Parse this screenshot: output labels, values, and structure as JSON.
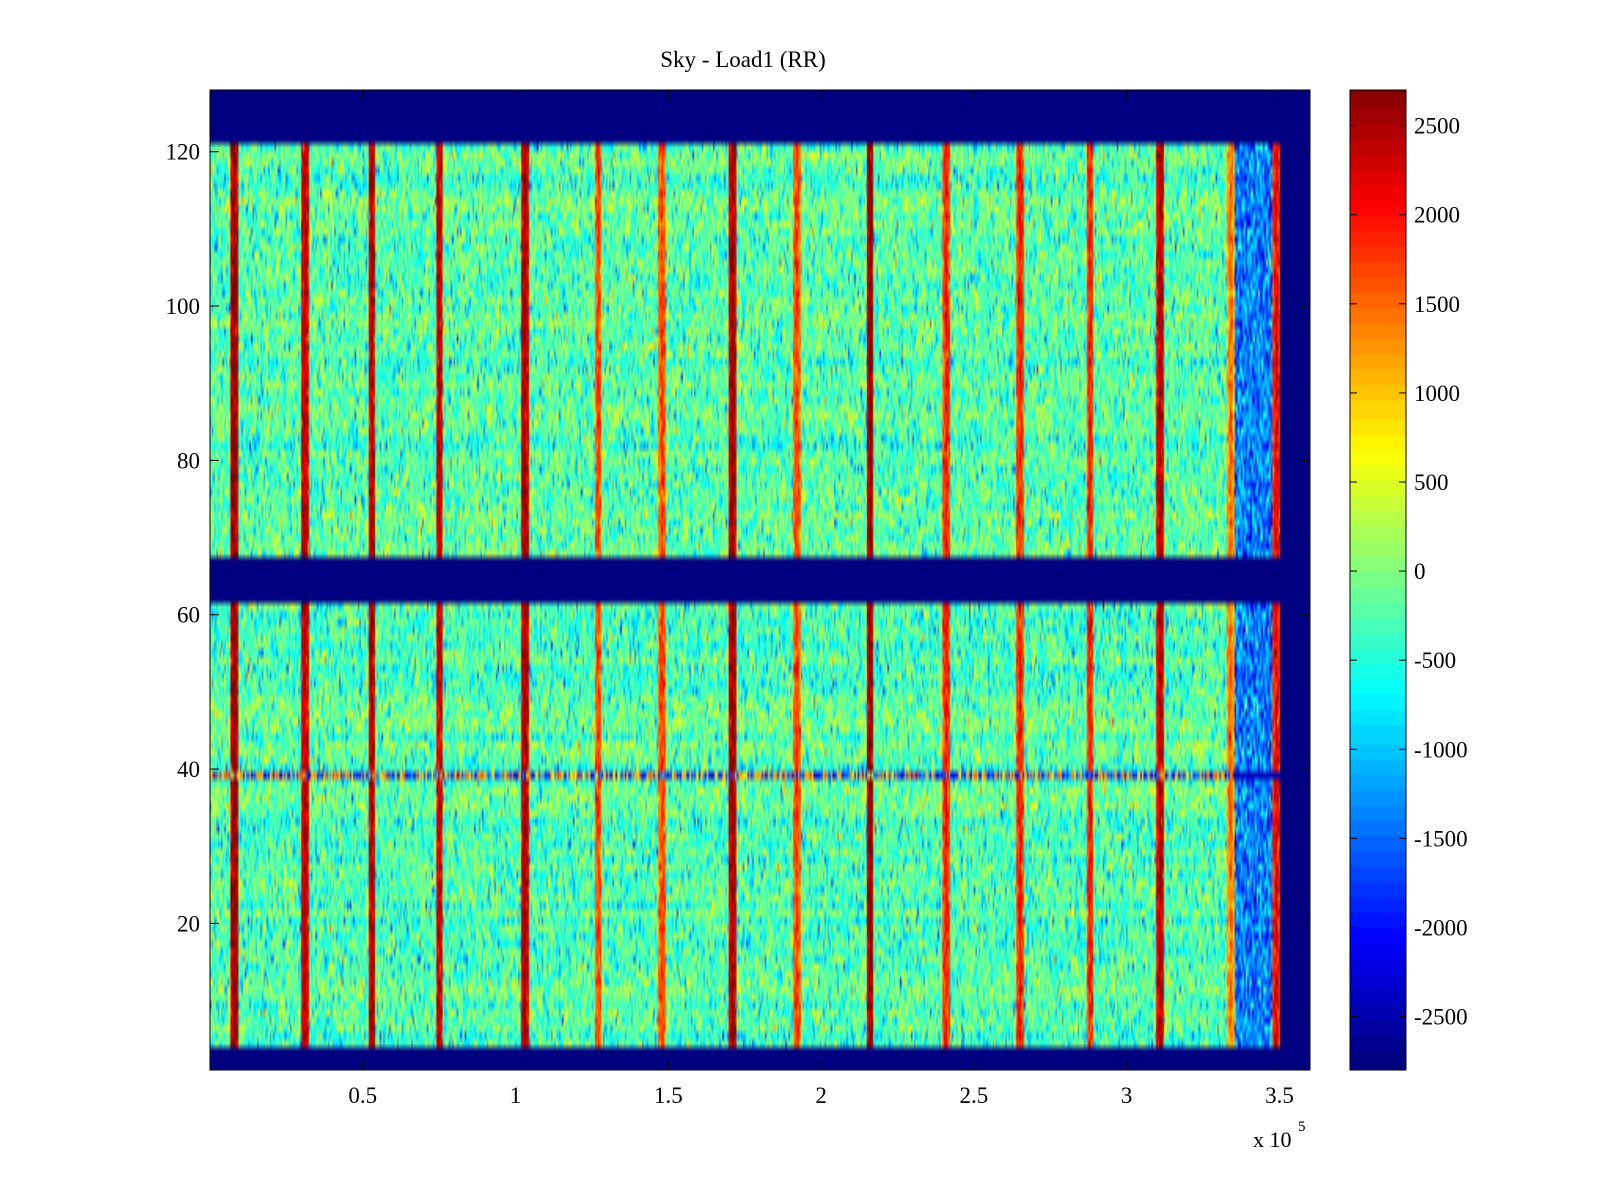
{
  "chart_data": {
    "type": "heatmap",
    "title": "Sky - Load1 (RR)",
    "xlabel": "",
    "ylabel": "",
    "x_exponent_base": "x 10",
    "x_exponent_power": "5",
    "xlim": [
      0,
      3.6
    ],
    "ylim": [
      1,
      128
    ],
    "x_ticks": [
      0.5,
      1,
      1.5,
      2,
      2.5,
      3,
      3.5
    ],
    "x_tick_labels": [
      "0.5",
      "1",
      "1.5",
      "2",
      "2.5",
      "3",
      "3.5"
    ],
    "y_ticks": [
      20,
      40,
      60,
      80,
      100,
      120
    ],
    "y_tick_labels": [
      "20",
      "40",
      "60",
      "80",
      "100",
      "120"
    ],
    "colorbar": {
      "range": [
        -2800,
        2700
      ],
      "ticks": [
        2500,
        2000,
        1500,
        1000,
        500,
        0,
        -500,
        -1000,
        -1500,
        -2000,
        -2500
      ],
      "tick_labels": [
        "2500",
        "2000",
        "1500",
        "1000",
        "500",
        "0",
        "-500",
        "-1000",
        "-1500",
        "-2000",
        "-2500"
      ],
      "colormap": "jet"
    },
    "data_extent_x": [
      0,
      3.5
    ],
    "valid_channel_ranges": [
      [
        3.5,
        61.5
      ],
      [
        67.5,
        121.5
      ]
    ],
    "blank_channel_ranges": [
      [
        0.5,
        3.5
      ],
      [
        61.5,
        67.5
      ],
      [
        121.5,
        128.5
      ]
    ],
    "background_value": -2800,
    "baseline_value": -300,
    "low_region": {
      "x_start": 3.35,
      "x_end": 3.5,
      "value": -1400
    },
    "spike_columns": [
      {
        "x": 0.08,
        "value": 2700
      },
      {
        "x": 0.31,
        "value": 2500
      },
      {
        "x": 0.53,
        "value": 2500
      },
      {
        "x": 0.75,
        "value": 2400
      },
      {
        "x": 1.03,
        "value": 2600
      },
      {
        "x": 1.27,
        "value": 1800
      },
      {
        "x": 1.48,
        "value": 1800
      },
      {
        "x": 1.71,
        "value": 2600
      },
      {
        "x": 1.92,
        "value": 1800
      },
      {
        "x": 2.16,
        "value": 2700
      },
      {
        "x": 2.41,
        "value": 2000
      },
      {
        "x": 2.65,
        "value": 2000
      },
      {
        "x": 2.88,
        "value": 2000
      },
      {
        "x": 3.11,
        "value": 2500
      },
      {
        "x": 3.34,
        "value": 1500
      },
      {
        "x": 3.49,
        "value": 2200
      }
    ],
    "anomaly_row": {
      "y": 39,
      "x_range": [
        0,
        3.5
      ],
      "value_high": 1200,
      "value_low": -1800
    }
  }
}
